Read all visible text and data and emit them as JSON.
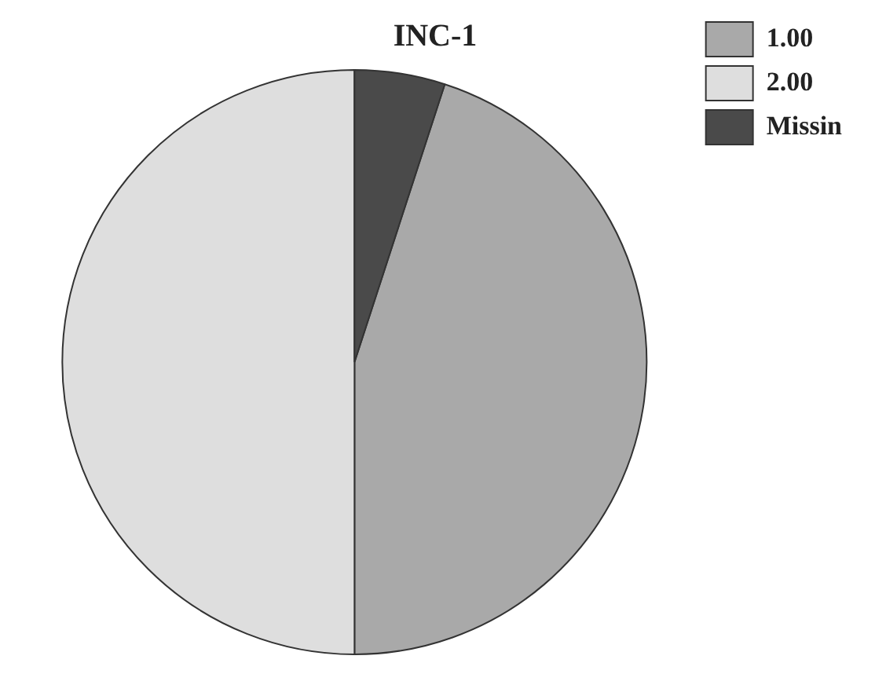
{
  "chart_data": {
    "type": "pie",
    "title": "INC-1",
    "categories": [
      "1.00",
      "2.00",
      "Missin"
    ],
    "values": [
      45,
      50,
      5
    ],
    "colors": [
      "#a9a9a9",
      "#dedede",
      "#4a4a4a"
    ],
    "legend": "top right"
  }
}
